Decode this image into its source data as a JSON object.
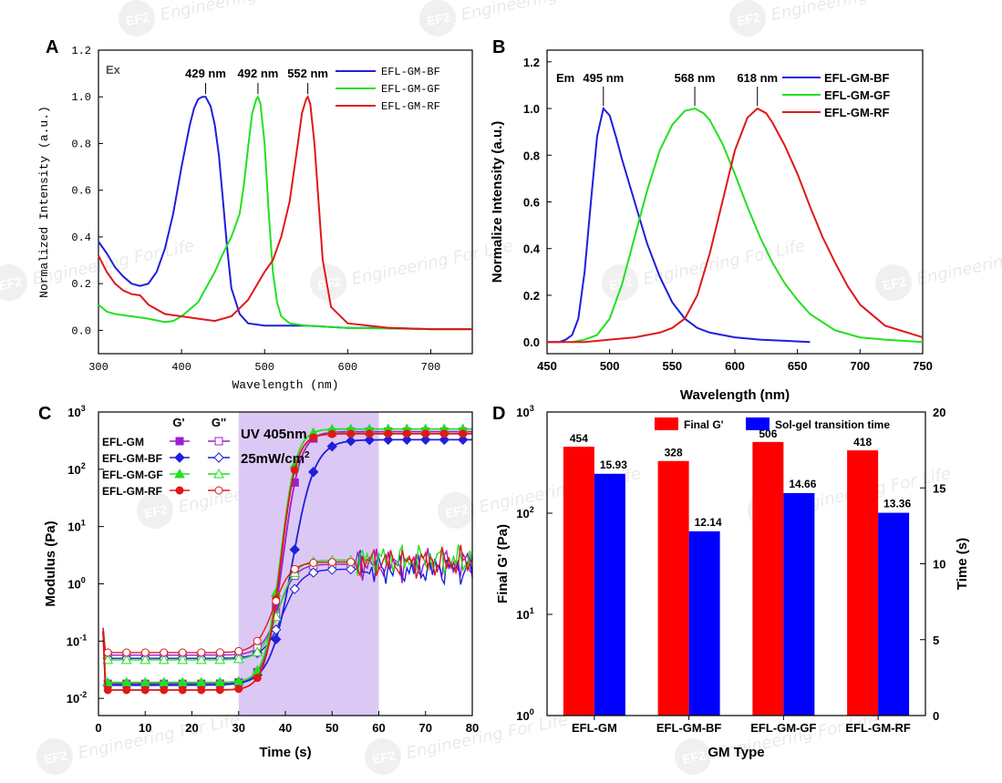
{
  "watermark": {
    "text": "Engineering For Life",
    "logo": "EF2"
  },
  "chart_data": [
    {
      "panel": "A",
      "type": "line",
      "xlabel": "Wavelength (nm)",
      "ylabel": "Normalized Intensity (a.u.)",
      "xlim": [
        300,
        750
      ],
      "ylim": [
        -0.1,
        1.2
      ],
      "xticks": [
        300,
        400,
        500,
        600,
        700
      ],
      "yticks": [
        0.0,
        0.2,
        0.4,
        0.6,
        0.8,
        1.0,
        1.2
      ],
      "inner_label": "Ex",
      "legend_position": "top-right",
      "annotations": [
        {
          "text": "429 nm",
          "x": 429,
          "y": 1.0
        },
        {
          "text": "492 nm",
          "x": 492,
          "y": 1.0
        },
        {
          "text": "552 nm",
          "x": 552,
          "y": 1.0
        }
      ],
      "series": [
        {
          "name": "EFL-GM-BF",
          "color": "#1f1fdc",
          "x": [
            300,
            310,
            320,
            330,
            340,
            350,
            360,
            370,
            380,
            390,
            400,
            410,
            415,
            420,
            425,
            429,
            435,
            440,
            445,
            450,
            455,
            460,
            470,
            480,
            500,
            550,
            600,
            650,
            700,
            750
          ],
          "y": [
            0.38,
            0.33,
            0.27,
            0.23,
            0.2,
            0.19,
            0.2,
            0.25,
            0.35,
            0.5,
            0.7,
            0.88,
            0.95,
            0.99,
            1.0,
            1.0,
            0.96,
            0.88,
            0.75,
            0.55,
            0.35,
            0.18,
            0.07,
            0.03,
            0.02,
            0.02,
            0.01,
            0.01,
            0.005,
            0.005
          ]
        },
        {
          "name": "EFL-GM-GF",
          "color": "#22e022",
          "x": [
            300,
            310,
            320,
            340,
            360,
            380,
            390,
            400,
            420,
            440,
            450,
            460,
            470,
            475,
            480,
            485,
            490,
            492,
            495,
            500,
            505,
            510,
            515,
            520,
            530,
            550,
            600,
            700,
            750
          ],
          "y": [
            0.11,
            0.08,
            0.07,
            0.06,
            0.05,
            0.035,
            0.04,
            0.06,
            0.12,
            0.25,
            0.33,
            0.4,
            0.5,
            0.62,
            0.78,
            0.93,
            0.99,
            1.0,
            0.97,
            0.8,
            0.5,
            0.25,
            0.12,
            0.06,
            0.03,
            0.02,
            0.01,
            0.005,
            0.005
          ]
        },
        {
          "name": "EFL-GM-RF",
          "color": "#e01818",
          "x": [
            300,
            310,
            320,
            330,
            340,
            350,
            360,
            380,
            400,
            420,
            440,
            460,
            480,
            500,
            510,
            520,
            530,
            540,
            545,
            550,
            552,
            555,
            560,
            565,
            570,
            580,
            600,
            650,
            700,
            750
          ],
          "y": [
            0.32,
            0.25,
            0.2,
            0.17,
            0.155,
            0.15,
            0.11,
            0.07,
            0.06,
            0.05,
            0.04,
            0.06,
            0.13,
            0.25,
            0.3,
            0.4,
            0.55,
            0.8,
            0.93,
            0.99,
            1.0,
            0.97,
            0.8,
            0.55,
            0.3,
            0.1,
            0.03,
            0.01,
            0.005,
            0.005
          ]
        }
      ]
    },
    {
      "panel": "B",
      "type": "line",
      "xlabel": "Wavelength (nm)",
      "ylabel": "Normalize Intensity (a.u.)",
      "xlim": [
        450,
        750
      ],
      "ylim": [
        -0.05,
        1.25
      ],
      "xticks": [
        450,
        500,
        550,
        600,
        650,
        700,
        750
      ],
      "yticks": [
        0.0,
        0.2,
        0.4,
        0.6,
        0.8,
        1.0,
        1.2
      ],
      "inner_label": "Em",
      "legend_position": "top-right",
      "annotations": [
        {
          "text": "495 nm",
          "x": 495,
          "y": 1.0
        },
        {
          "text": "568 nm",
          "x": 568,
          "y": 1.0
        },
        {
          "text": "618 nm",
          "x": 618,
          "y": 1.0
        }
      ],
      "series": [
        {
          "name": "EFL-GM-BF",
          "color": "#1f1fdc",
          "x": [
            450,
            460,
            465,
            470,
            475,
            480,
            485,
            490,
            495,
            500,
            505,
            510,
            520,
            530,
            540,
            550,
            560,
            570,
            580,
            600,
            620,
            640,
            660
          ],
          "y": [
            0.0,
            0.0,
            0.01,
            0.03,
            0.1,
            0.3,
            0.6,
            0.88,
            1.0,
            0.97,
            0.88,
            0.78,
            0.6,
            0.42,
            0.28,
            0.17,
            0.1,
            0.06,
            0.04,
            0.02,
            0.01,
            0.005,
            0.0
          ]
        },
        {
          "name": "EFL-GM-GF",
          "color": "#22e022",
          "x": [
            470,
            480,
            490,
            500,
            510,
            520,
            530,
            540,
            550,
            560,
            568,
            575,
            580,
            590,
            600,
            610,
            620,
            630,
            640,
            650,
            660,
            680,
            700,
            720,
            750
          ],
          "y": [
            0.0,
            0.01,
            0.03,
            0.1,
            0.25,
            0.45,
            0.65,
            0.82,
            0.93,
            0.99,
            1.0,
            0.98,
            0.95,
            0.85,
            0.72,
            0.58,
            0.45,
            0.34,
            0.25,
            0.18,
            0.12,
            0.05,
            0.02,
            0.01,
            0.0
          ]
        },
        {
          "name": "EFL-GM-RF",
          "color": "#e01818",
          "x": [
            450,
            480,
            500,
            520,
            540,
            550,
            560,
            570,
            580,
            590,
            600,
            610,
            618,
            625,
            630,
            640,
            650,
            660,
            670,
            680,
            690,
            700,
            720,
            750
          ],
          "y": [
            0.0,
            0.0,
            0.01,
            0.02,
            0.04,
            0.06,
            0.1,
            0.2,
            0.38,
            0.6,
            0.82,
            0.96,
            1.0,
            0.98,
            0.94,
            0.84,
            0.72,
            0.58,
            0.45,
            0.34,
            0.24,
            0.16,
            0.07,
            0.02
          ]
        }
      ]
    },
    {
      "panel": "C",
      "type": "line",
      "xlabel": "Time (s)",
      "ylabel": "Modulus (Pa)",
      "xlim": [
        0,
        80
      ],
      "ylim_log10": [
        -2.3,
        3
      ],
      "y_scale": "log",
      "xticks": [
        0,
        10,
        20,
        30,
        40,
        50,
        60,
        70,
        80
      ],
      "yticks": [
        "10^-2",
        "10^-1",
        "10^0",
        "10^1",
        "10^2",
        "10^3"
      ],
      "uv_region": {
        "x0": 30,
        "x1": 60,
        "color": "#dcc8f5",
        "label_line1": "UV 405nm",
        "label_line2": "25mW/cm",
        "label_sup": "2"
      },
      "legend_position": "top-left",
      "legend_header": {
        "gprime": "G'",
        "gdouble": "G''"
      },
      "series": [
        {
          "name": "EFL-GM",
          "color": "#9b1fd0",
          "marker": "square",
          "Gp": {
            "base": 0.018,
            "final": 454,
            "tmid": 39.5,
            "k": 0.55
          },
          "Gpp": {
            "base": 0.057,
            "final": 2.2,
            "tmid": 38.5,
            "k": 0.55
          }
        },
        {
          "name": "EFL-GM-BF",
          "color": "#1f1fdc",
          "marker": "diamond",
          "Gp": {
            "base": 0.017,
            "final": 328,
            "tmid": 41.5,
            "k": 0.42
          },
          "Gpp": {
            "base": 0.05,
            "final": 1.8,
            "tmid": 39.5,
            "k": 0.5
          }
        },
        {
          "name": "EFL-GM-GF",
          "color": "#22e022",
          "marker": "triangle",
          "Gp": {
            "base": 0.019,
            "final": 506,
            "tmid": 39.0,
            "k": 0.6
          },
          "Gpp": {
            "base": 0.047,
            "final": 2.6,
            "tmid": 38.5,
            "k": 0.55
          }
        },
        {
          "name": "EFL-GM-RF",
          "color": "#e01818",
          "marker": "circle",
          "Gp": {
            "base": 0.014,
            "final": 418,
            "tmid": 39.0,
            "k": 0.6
          },
          "Gpp": {
            "base": 0.063,
            "final": 2.4,
            "tmid": 37.5,
            "k": 0.55
          }
        }
      ]
    },
    {
      "panel": "D",
      "type": "bar",
      "xlabel": "GM Type",
      "ylabel": "Final G' (Pa)",
      "y2label": "Time (s)",
      "ylim_log10": [
        0,
        3
      ],
      "y2lim": [
        0,
        20
      ],
      "yticks": [
        "10^0",
        "10^1",
        "10^2",
        "10^3"
      ],
      "y2ticks": [
        0,
        5,
        10,
        15,
        20
      ],
      "categories": [
        "EFL-GM",
        "EFL-GM-BF",
        "EFL-GM-GF",
        "EFL-GM-RF"
      ],
      "legend_position": "top",
      "series": [
        {
          "name": "Final G'",
          "color": "#ff0000",
          "axis": "left",
          "values": [
            454,
            328,
            506,
            418
          ],
          "labels": [
            "454",
            "328",
            "506",
            "418"
          ]
        },
        {
          "name": "Sol-gel transition time",
          "color": "#0000ff",
          "axis": "right",
          "values": [
            15.93,
            12.14,
            14.66,
            13.36
          ],
          "labels": [
            "15.93",
            "12.14",
            "14.66",
            "13.36"
          ]
        }
      ]
    }
  ]
}
